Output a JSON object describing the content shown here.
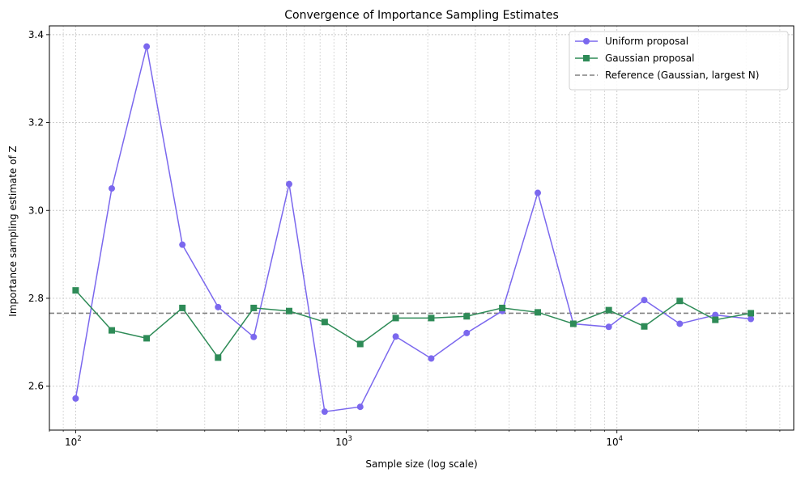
{
  "chart_data": {
    "type": "line",
    "title": "Convergence of Importance Sampling Estimates",
    "xlabel": "Sample size (log scale)",
    "ylabel": "Importance sampling estimate of Z",
    "xscale": "log",
    "xlim": [
      80,
      45000
    ],
    "ylim": [
      2.5,
      3.42
    ],
    "yticks": [
      2.6,
      2.8,
      3.0,
      3.2,
      3.4
    ],
    "ytick_labels": [
      "2.6",
      "2.8",
      "3.0",
      "3.2",
      "3.4"
    ],
    "xticks_major": [
      100,
      1000,
      10000
    ],
    "xtick_labels": [
      {
        "base": "10",
        "exp": "2"
      },
      {
        "base": "10",
        "exp": "3"
      },
      {
        "base": "10",
        "exp": "4"
      }
    ],
    "grid": true,
    "legend_position": "top-right",
    "x": [
      100,
      136,
      183,
      248,
      336,
      455,
      615,
      832,
      1126,
      1523,
      2060,
      2786,
      3770,
      5100,
      6900,
      9330,
      12620,
      17070,
      23100,
      31250
    ],
    "series": [
      {
        "name": "Uniform proposal",
        "color": "#7b68ee",
        "marker": "circle",
        "values": [
          2.572,
          3.05,
          3.373,
          2.922,
          2.78,
          2.712,
          3.06,
          2.542,
          2.553,
          2.713,
          2.663,
          2.721,
          2.771,
          3.04,
          2.742,
          2.735,
          2.796,
          2.742,
          2.762,
          2.753
        ]
      },
      {
        "name": "Gaussian proposal",
        "color": "#2e8b57",
        "marker": "square",
        "values": [
          2.818,
          2.727,
          2.709,
          2.778,
          2.665,
          2.778,
          2.771,
          2.746,
          2.696,
          2.755,
          2.755,
          2.759,
          2.778,
          2.768,
          2.742,
          2.773,
          2.736,
          2.794,
          2.751,
          2.766
        ]
      }
    ],
    "reference": {
      "name": "Reference (Gaussian, largest N)",
      "value": 2.766,
      "color": "#808080"
    }
  }
}
